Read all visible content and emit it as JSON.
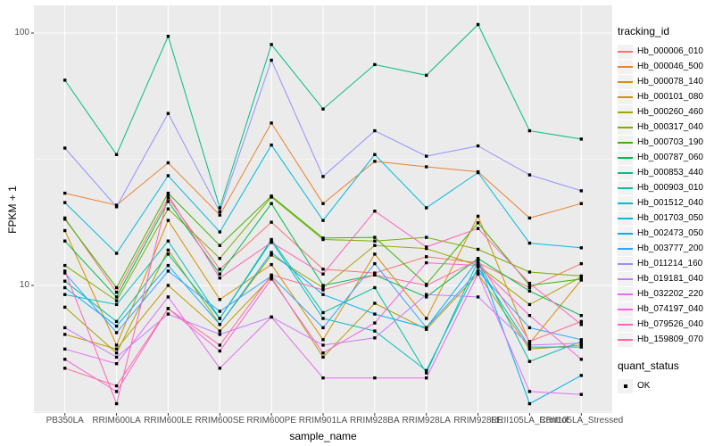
{
  "figure": {
    "background": "#FFFFFF",
    "panel_background": "#EBEBEB",
    "grid_color": "#FFFFFF",
    "axis_text_color": "#4D4D4D",
    "point_color": "#000000"
  },
  "axes": {
    "x_label": "sample_name",
    "y_label": "FPKM + 1",
    "y_ticks": [
      "100",
      "10"
    ]
  },
  "legend": {
    "tracking_title": "tracking_id",
    "quant_title": "quant_status",
    "quant_items": [
      {
        "label": "OK",
        "symbol": "black-square"
      }
    ]
  },
  "chart_data": {
    "type": "line",
    "x_axis": "sample_name",
    "y_axis": "FPKM + 1",
    "y_scale": "log10",
    "y_major_gridlines": [
      100,
      10
    ],
    "y_minor_gridlines": [
      31.62,
      3.162
    ],
    "ylim": [
      3.2,
      128
    ],
    "legend_position": "right",
    "point_shape": "filled-square",
    "categories": [
      "PB350LA",
      "RRIM600LA",
      "RRIM600LE",
      "RRIM600SE",
      "RRIM600PE",
      "RRIM901LA",
      "RRIM928BA",
      "RRIM928LA",
      "RRIM928LE",
      "RRII105LA_Control",
      "RRII105LA_Stressed"
    ],
    "series": [
      {
        "name": "Hb_000006_010",
        "color": "#F8766D",
        "values": [
          18.5,
          9.4,
          22.2,
          11.6,
          17.8,
          11.6,
          11.2,
          13.0,
          12.3,
          9.8,
          12.2
        ]
      },
      {
        "name": "Hb_000046_500",
        "color": "#EA8331",
        "values": [
          23.2,
          20.8,
          30.6,
          19.0,
          44,
          21.1,
          31,
          29.5,
          28.2,
          18.5,
          21.1
        ]
      },
      {
        "name": "Hb_000078_140",
        "color": "#D89000",
        "values": [
          16.5,
          5.8,
          18.1,
          8.8,
          12.1,
          6.1,
          13.3,
          7.4,
          18.8,
          5.9,
          10.5
        ]
      },
      {
        "name": "Hb_000101_080",
        "color": "#C09B00",
        "values": [
          6.4,
          5.6,
          10.0,
          6.6,
          10.8,
          5.2,
          8.5,
          6.7,
          11.1,
          5.6,
          5.8
        ]
      },
      {
        "name": "Hb_000260_460",
        "color": "#A3A500",
        "values": [
          8.2,
          5.4,
          13.8,
          7.0,
          13.2,
          9.8,
          14.4,
          14.0,
          12.0,
          8.4,
          10.8
        ]
      },
      {
        "name": "Hb_000317_040",
        "color": "#7CAE00",
        "values": [
          12.0,
          8.7,
          20.1,
          12.8,
          22.4,
          15.2,
          15.0,
          15.5,
          13.9,
          11.3,
          10.9
        ]
      },
      {
        "name": "Hb_000703_190",
        "color": "#39B600",
        "values": [
          18.3,
          9.8,
          23.2,
          14.4,
          22.6,
          15.4,
          15.5,
          10.1,
          17.7,
          10.0,
          10.6
        ]
      },
      {
        "name": "Hb_000787_060",
        "color": "#00BB4E",
        "values": [
          15.0,
          9.0,
          21.5,
          11.1,
          21.1,
          10.0,
          11.0,
          9.0,
          12.8,
          9.5,
          7.6
        ]
      },
      {
        "name": "Hb_000853_440",
        "color": "#00BF7D",
        "values": [
          65,
          33,
          97,
          20.3,
          90,
          50,
          75,
          68,
          108,
          41,
          38
        ]
      },
      {
        "name": "Hb_000903_010",
        "color": "#00C1A3",
        "values": [
          10.4,
          7.2,
          13.3,
          7.4,
          15.2,
          7.8,
          9.8,
          4.5,
          12.5,
          5.0,
          6.0
        ]
      },
      {
        "name": "Hb_001512_040",
        "color": "#00BFC4",
        "values": [
          9.2,
          8.4,
          15.0,
          7.4,
          15.0,
          7.4,
          6.6,
          4.6,
          11.8,
          5.7,
          5.7
        ]
      },
      {
        "name": "Hb_001703_050",
        "color": "#00BAE0",
        "values": [
          21.3,
          13.4,
          27.2,
          16.3,
          36,
          18.1,
          33,
          20.3,
          28.0,
          14.7,
          14.1
        ]
      },
      {
        "name": "Hb_002473_050",
        "color": "#00B0F6",
        "values": [
          9.8,
          6.9,
          12.0,
          7.0,
          13.5,
          9.2,
          7.7,
          6.8,
          12.6,
          3.4,
          4.4
        ]
      },
      {
        "name": "Hb_003777_200",
        "color": "#35A2FF",
        "values": [
          11.2,
          6.5,
          11.4,
          7.9,
          10.9,
          6.8,
          12.2,
          6.8,
          11.4,
          6.8,
          6.1
        ]
      },
      {
        "name": "Hb_011214_160",
        "color": "#9590FF",
        "values": [
          35,
          20.5,
          48,
          19.6,
          78,
          27,
          41,
          32.5,
          35.7,
          27.4,
          23.7
        ]
      },
      {
        "name": "Hb_019181_040",
        "color": "#C77CFF",
        "values": [
          6.8,
          5.2,
          7.7,
          6.4,
          7.5,
          5.8,
          6.2,
          9.2,
          9.0,
          5.8,
          5.9
        ]
      },
      {
        "name": "Hb_032202_220",
        "color": "#E76BF3",
        "values": [
          5.6,
          4.9,
          9.0,
          4.7,
          7.5,
          4.3,
          4.3,
          4.3,
          11.1,
          3.8,
          3.7
        ]
      },
      {
        "name": "Hb_074197_040",
        "color": "#FA62DB",
        "values": [
          5.1,
          3.8,
          8.1,
          5.5,
          10.6,
          5.4,
          7.1,
          12.3,
          12.0,
          7.6,
          5.1
        ]
      },
      {
        "name": "Hb_079526_040",
        "color": "#FF62BC",
        "values": [
          11.4,
          3.4,
          22.8,
          10.7,
          14.8,
          11.1,
          19.7,
          14.2,
          16.8,
          10.2,
          7.0
        ]
      },
      {
        "name": "Hb_159809_070",
        "color": "#FF6A98",
        "values": [
          4.7,
          4.0,
          8.1,
          5.8,
          11.0,
          9.6,
          11.0,
          10.0,
          12.6,
          6.0,
          7.2
        ]
      }
    ]
  }
}
